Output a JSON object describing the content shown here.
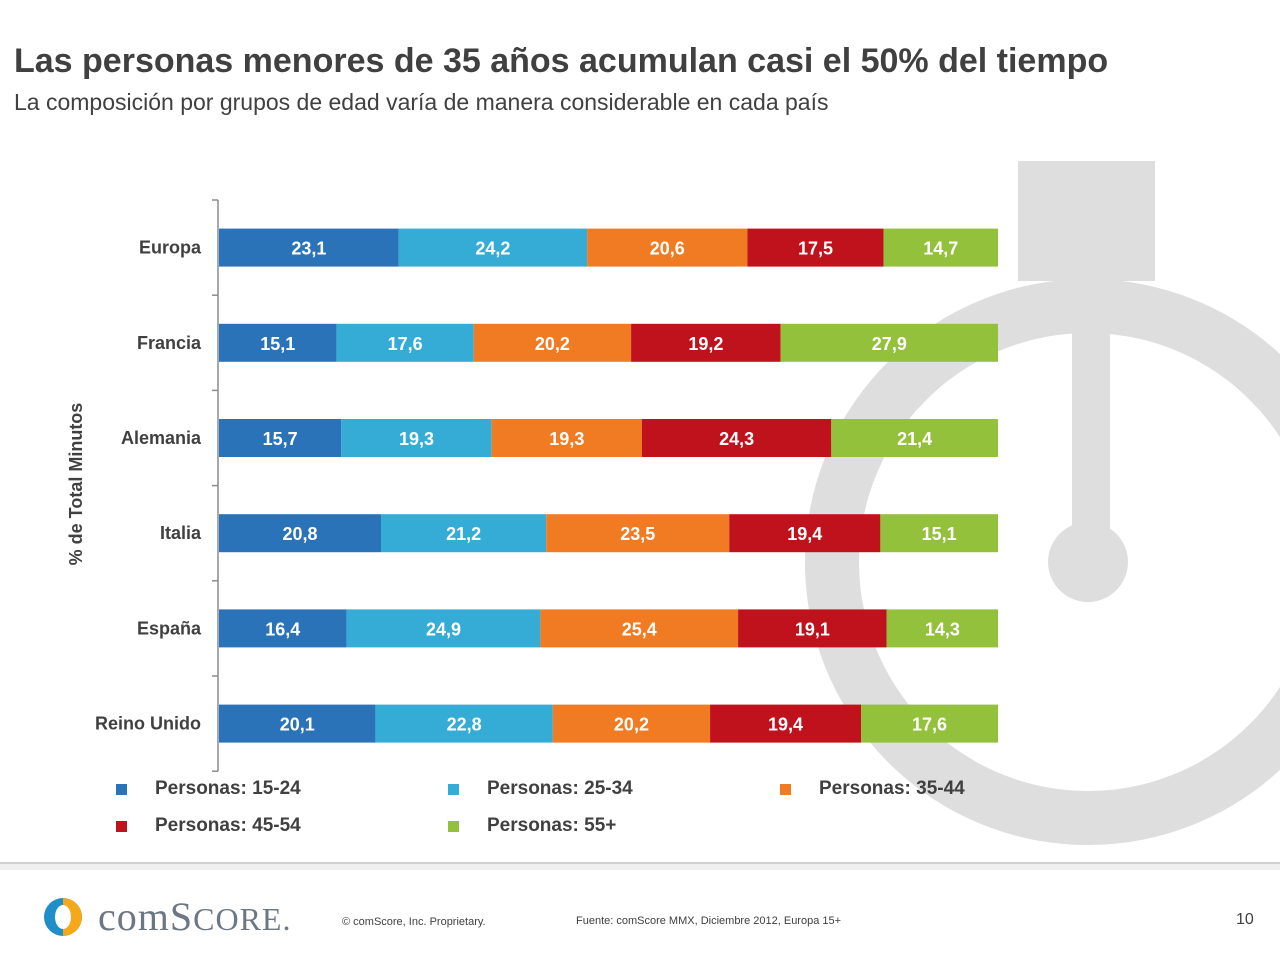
{
  "header": {
    "title": "Las personas menores de 35 años acumulan casi el 50% del tiempo",
    "subtitle": "La composición por grupos de edad varía de manera considerable en cada país"
  },
  "chart_data": {
    "type": "bar",
    "orientation": "horizontal",
    "stacked": true,
    "ylabel": "% de Total Minutos",
    "xlim": [
      0,
      100
    ],
    "categories": [
      "Europa",
      "Francia",
      "Alemania",
      "Italia",
      "España",
      "Reino Unido"
    ],
    "series": [
      {
        "name": "Personas: 15-24",
        "color": "#2b73b8",
        "values": [
          23.1,
          15.1,
          15.7,
          20.8,
          16.4,
          20.1
        ],
        "labels": [
          "23,1",
          "15,1",
          "15,7",
          "20,8",
          "16,4",
          "20,1"
        ]
      },
      {
        "name": "Personas: 25-34",
        "color": "#35acd6",
        "values": [
          24.2,
          17.6,
          19.3,
          21.2,
          24.9,
          22.8
        ],
        "labels": [
          "24,2",
          "17,6",
          "19,3",
          "21,2",
          "24,9",
          "22,8"
        ]
      },
      {
        "name": "Personas: 35-44",
        "color": "#f07b22",
        "values": [
          20.6,
          20.2,
          19.3,
          23.5,
          25.4,
          20.2
        ],
        "labels": [
          "20,6",
          "20,2",
          "19,3",
          "23,5",
          "25,4",
          "20,2"
        ]
      },
      {
        "name": "Personas: 45-54",
        "color": "#c0121c",
        "values": [
          17.5,
          19.2,
          24.3,
          19.4,
          19.1,
          19.4
        ],
        "labels": [
          "17,5",
          "19,2",
          "24,3",
          "19,4",
          "19,1",
          "19,4"
        ]
      },
      {
        "name": "Personas: 55+",
        "color": "#93c13c",
        "values": [
          14.7,
          27.9,
          21.4,
          15.1,
          14.3,
          17.6
        ],
        "labels": [
          "14,7",
          "27,9",
          "21,4",
          "15,1",
          "14,3",
          "17,6"
        ]
      }
    ],
    "legend_position": "bottom"
  },
  "footer": {
    "logo_text_prefix": "com",
    "logo_text_s": "S",
    "logo_text_suffix": "CORE",
    "logo_mark": ".",
    "copyright": "© comScore, Inc.    Proprietary.",
    "source": "Fuente: comScore MMX, Diciembre 2012, Europa 15+",
    "page_number": "10"
  }
}
